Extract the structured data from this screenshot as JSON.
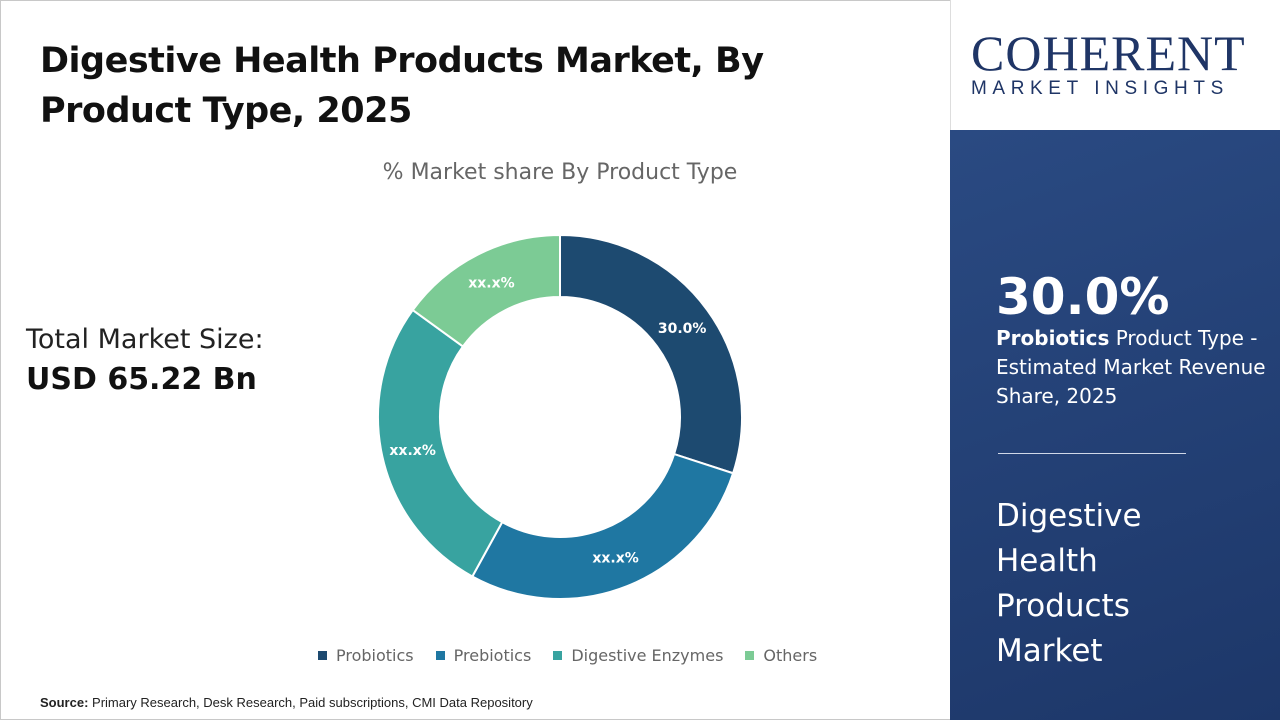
{
  "header": {
    "title": "Digestive Health Products Market, By Product Type, 2025"
  },
  "total_market": {
    "label": "Total Market Size:",
    "value": "USD 65.22 Bn"
  },
  "source": {
    "label": "Source:",
    "text": "Primary Research, Desk Research, Paid subscriptions, CMI Data Repository"
  },
  "logo": {
    "main": "COHERENT",
    "sub": "MARKET INSIGHTS"
  },
  "side_panel": {
    "percent": "30.0%",
    "segment": "Probiotics",
    "description": " Product Type - Estimated Market Revenue Share, 2025",
    "market_name": "Digestive Health Products Market"
  },
  "chart_data": {
    "type": "pie",
    "subtype": "donut",
    "title": "% Market share By Product Type",
    "categories": [
      "Probiotics",
      "Prebiotics",
      "Digestive Enzymes",
      "Others"
    ],
    "values": [
      30.0,
      28.0,
      27.0,
      15.0
    ],
    "data_labels": [
      "30.0%",
      "xx.x%",
      "xx.x%",
      "xx.x%"
    ],
    "colors": [
      "#1d4a70",
      "#1f77a2",
      "#38a3a0",
      "#7ccb95"
    ],
    "legend_position": "bottom"
  }
}
